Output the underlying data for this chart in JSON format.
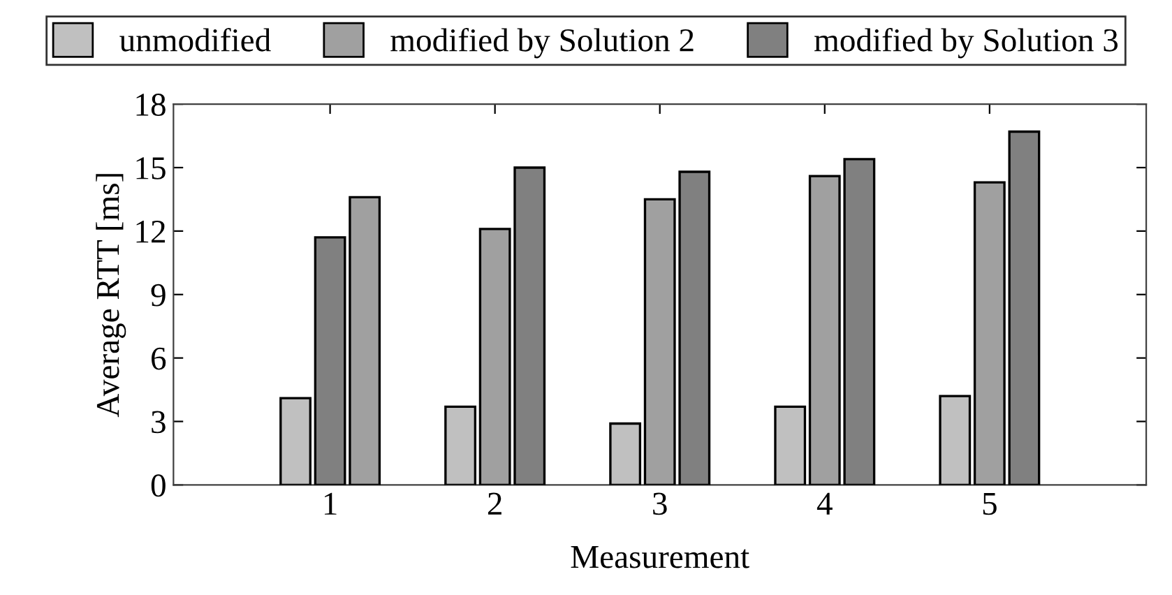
{
  "chart_data": {
    "type": "bar",
    "xlabel": "Measurement",
    "ylabel": "Average RTT [ms]",
    "categories": [
      "1",
      "2",
      "3",
      "4",
      "5"
    ],
    "series": [
      {
        "name": "unmodified",
        "color": "#c0c0c0",
        "values": [
          4.1,
          3.7,
          2.9,
          3.7,
          4.2
        ]
      },
      {
        "name": "modified by Solution 2",
        "color": "#a0a0a0",
        "colors": [
          "#808080",
          "#a0a0a0",
          "#a0a0a0",
          "#a0a0a0",
          "#a0a0a0"
        ],
        "values": [
          11.7,
          12.1,
          13.5,
          14.6,
          14.3
        ]
      },
      {
        "name": "modified by Solution 3",
        "color": "#808080",
        "colors": [
          "#a0a0a0",
          "#808080",
          "#808080",
          "#808080",
          "#808080"
        ],
        "values": [
          13.6,
          15.0,
          14.8,
          15.4,
          16.7
        ]
      }
    ],
    "ylim": [
      0,
      18
    ],
    "yticks": [
      0,
      3,
      6,
      9,
      12,
      15,
      18
    ],
    "grid": false,
    "legend": "top"
  }
}
